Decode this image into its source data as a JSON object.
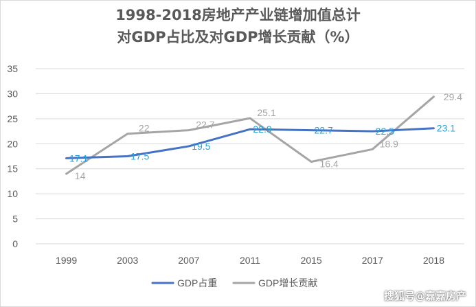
{
  "chart_data": {
    "type": "line",
    "title_line1": "1998-2018房地产产业链增加值总计",
    "title_line2": "对GDP占比及对GDP增长贡献（%）",
    "categories": [
      "1999",
      "2003",
      "2007",
      "2011",
      "2015",
      "2017",
      "2018"
    ],
    "ylim": [
      0,
      35
    ],
    "yticks": [
      "0",
      "5",
      "10",
      "15",
      "20",
      "25",
      "30",
      "35"
    ],
    "grid": true,
    "legend_position": "bottom",
    "series": [
      {
        "name": "GDP占重",
        "color": "#4472c4",
        "label_color": "#1ea3e0",
        "values": [
          17.1,
          17.5,
          19.5,
          22.9,
          22.7,
          22.5,
          23.1
        ]
      },
      {
        "name": "GDP增长贡献",
        "color": "#a5a5a5",
        "label_color": "#a5a5a5",
        "values": [
          14,
          22,
          22.7,
          25.1,
          16.4,
          18.9,
          29.4
        ]
      }
    ]
  },
  "watermark": "搜狐号@嘉嘉房产"
}
